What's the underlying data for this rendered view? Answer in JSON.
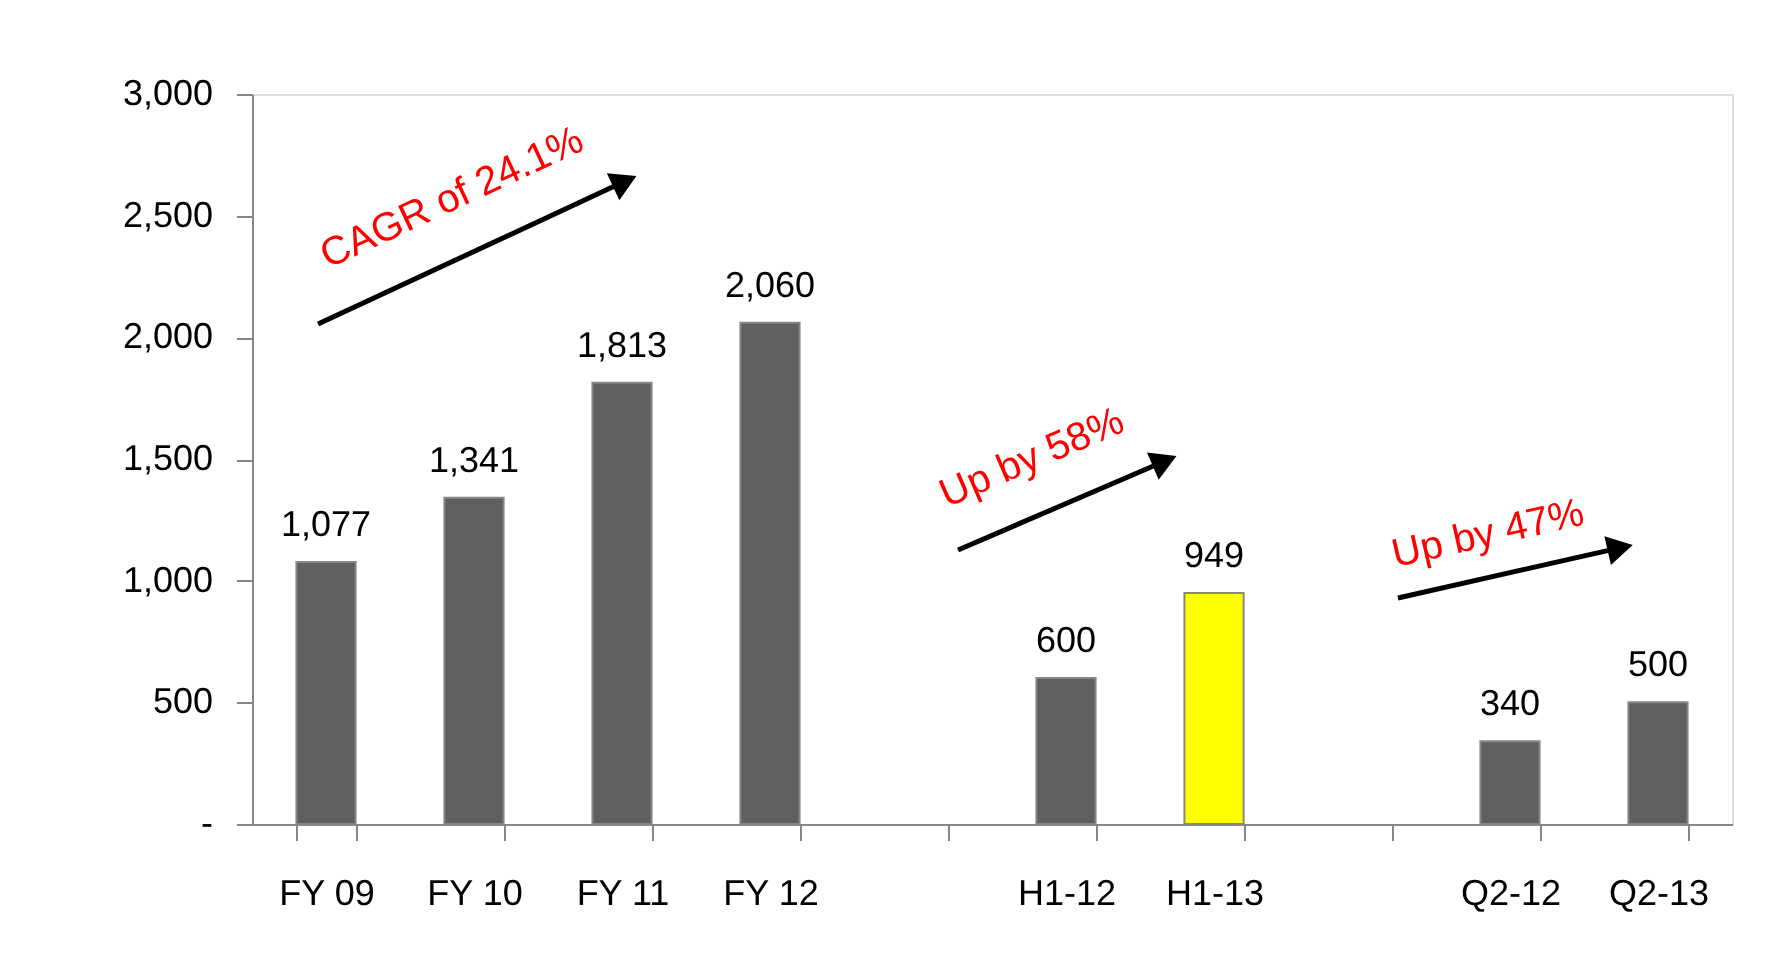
{
  "chart_data": {
    "type": "bar",
    "categories": [
      "FY 09",
      "FY 10",
      "FY 11",
      "FY 12",
      null,
      "H1-12",
      "H1-13",
      null,
      "Q2-12",
      "Q2-13"
    ],
    "values": [
      1077,
      1341,
      1813,
      2060,
      null,
      600,
      949,
      null,
      340,
      500
    ],
    "colors": [
      "#606060",
      "#606060",
      "#606060",
      "#606060",
      null,
      "#606060",
      "#ffff00",
      null,
      "#606060",
      "#606060"
    ],
    "value_labels": [
      "1,077",
      "1,341",
      "1,813",
      "2,060",
      null,
      "600",
      "949",
      null,
      "340",
      "500"
    ],
    "ylim": [
      0,
      3000
    ],
    "yticks": [
      {
        "value": 0,
        "label": "-"
      },
      {
        "value": 500,
        "label": "500"
      },
      {
        "value": 1000,
        "label": "1,000"
      },
      {
        "value": 1500,
        "label": "1,500"
      },
      {
        "value": 2000,
        "label": "2,000"
      },
      {
        "value": 2500,
        "label": "2,500"
      },
      {
        "value": 3000,
        "label": "3,000"
      }
    ],
    "annotations": [
      "CAGR of 24.1%",
      "Up by 58%",
      "Up by 47%"
    ],
    "grid": false
  }
}
